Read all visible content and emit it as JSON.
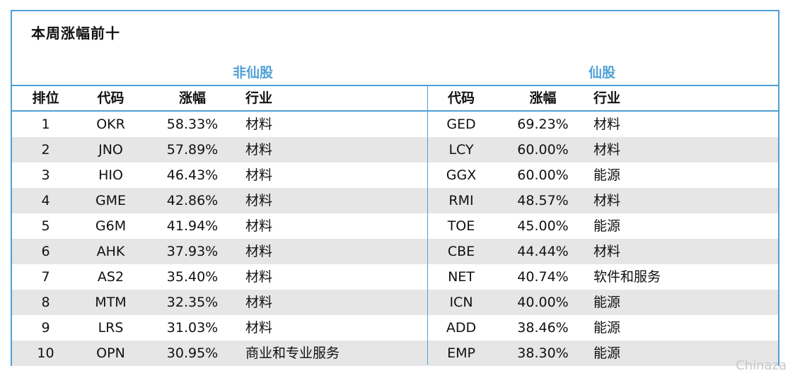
{
  "title": "本周涨幅前十",
  "groups": {
    "left": "非仙股",
    "right": "仙股"
  },
  "headers": {
    "rank": "排位",
    "code_left": "代码",
    "gain_left": "涨幅",
    "industry_left": "行业",
    "code_right": "代码",
    "gain_right": "涨幅",
    "industry_right": "行业"
  },
  "rows": [
    {
      "rank": "1",
      "code_l": "OKR",
      "gain_l": "58.33%",
      "ind_l": "材料",
      "code_r": "GED",
      "gain_r": "69.23%",
      "ind_r": "材料"
    },
    {
      "rank": "2",
      "code_l": "JNO",
      "gain_l": "57.89%",
      "ind_l": "材料",
      "code_r": "LCY",
      "gain_r": "60.00%",
      "ind_r": "材料"
    },
    {
      "rank": "3",
      "code_l": "HIO",
      "gain_l": "46.43%",
      "ind_l": "材料",
      "code_r": "GGX",
      "gain_r": "60.00%",
      "ind_r": "能源"
    },
    {
      "rank": "4",
      "code_l": "GME",
      "gain_l": "42.86%",
      "ind_l": "材料",
      "code_r": "RMI",
      "gain_r": "48.57%",
      "ind_r": "材料"
    },
    {
      "rank": "5",
      "code_l": "G6M",
      "gain_l": "41.94%",
      "ind_l": "材料",
      "code_r": "TOE",
      "gain_r": "45.00%",
      "ind_r": "能源"
    },
    {
      "rank": "6",
      "code_l": "AHK",
      "gain_l": "37.93%",
      "ind_l": "材料",
      "code_r": "CBE",
      "gain_r": "44.44%",
      "ind_r": "材料"
    },
    {
      "rank": "7",
      "code_l": "AS2",
      "gain_l": "35.40%",
      "ind_l": "材料",
      "code_r": "NET",
      "gain_r": "40.74%",
      "ind_r": "软件和服务"
    },
    {
      "rank": "8",
      "code_l": "MTM",
      "gain_l": "32.35%",
      "ind_l": "材料",
      "code_r": "ICN",
      "gain_r": "40.00%",
      "ind_r": "能源"
    },
    {
      "rank": "9",
      "code_l": "LRS",
      "gain_l": "31.03%",
      "ind_l": "材料",
      "code_r": "ADD",
      "gain_r": "38.46%",
      "ind_r": "能源"
    },
    {
      "rank": "10",
      "code_l": "OPN",
      "gain_l": "30.95%",
      "ind_l": "商业和专业服务",
      "code_r": "EMP",
      "gain_r": "38.30%",
      "ind_r": "能源"
    }
  ],
  "watermark": "Chinaza",
  "colors": {
    "accent": "#4f9fd6",
    "row_alt": "#e6e6e6"
  }
}
